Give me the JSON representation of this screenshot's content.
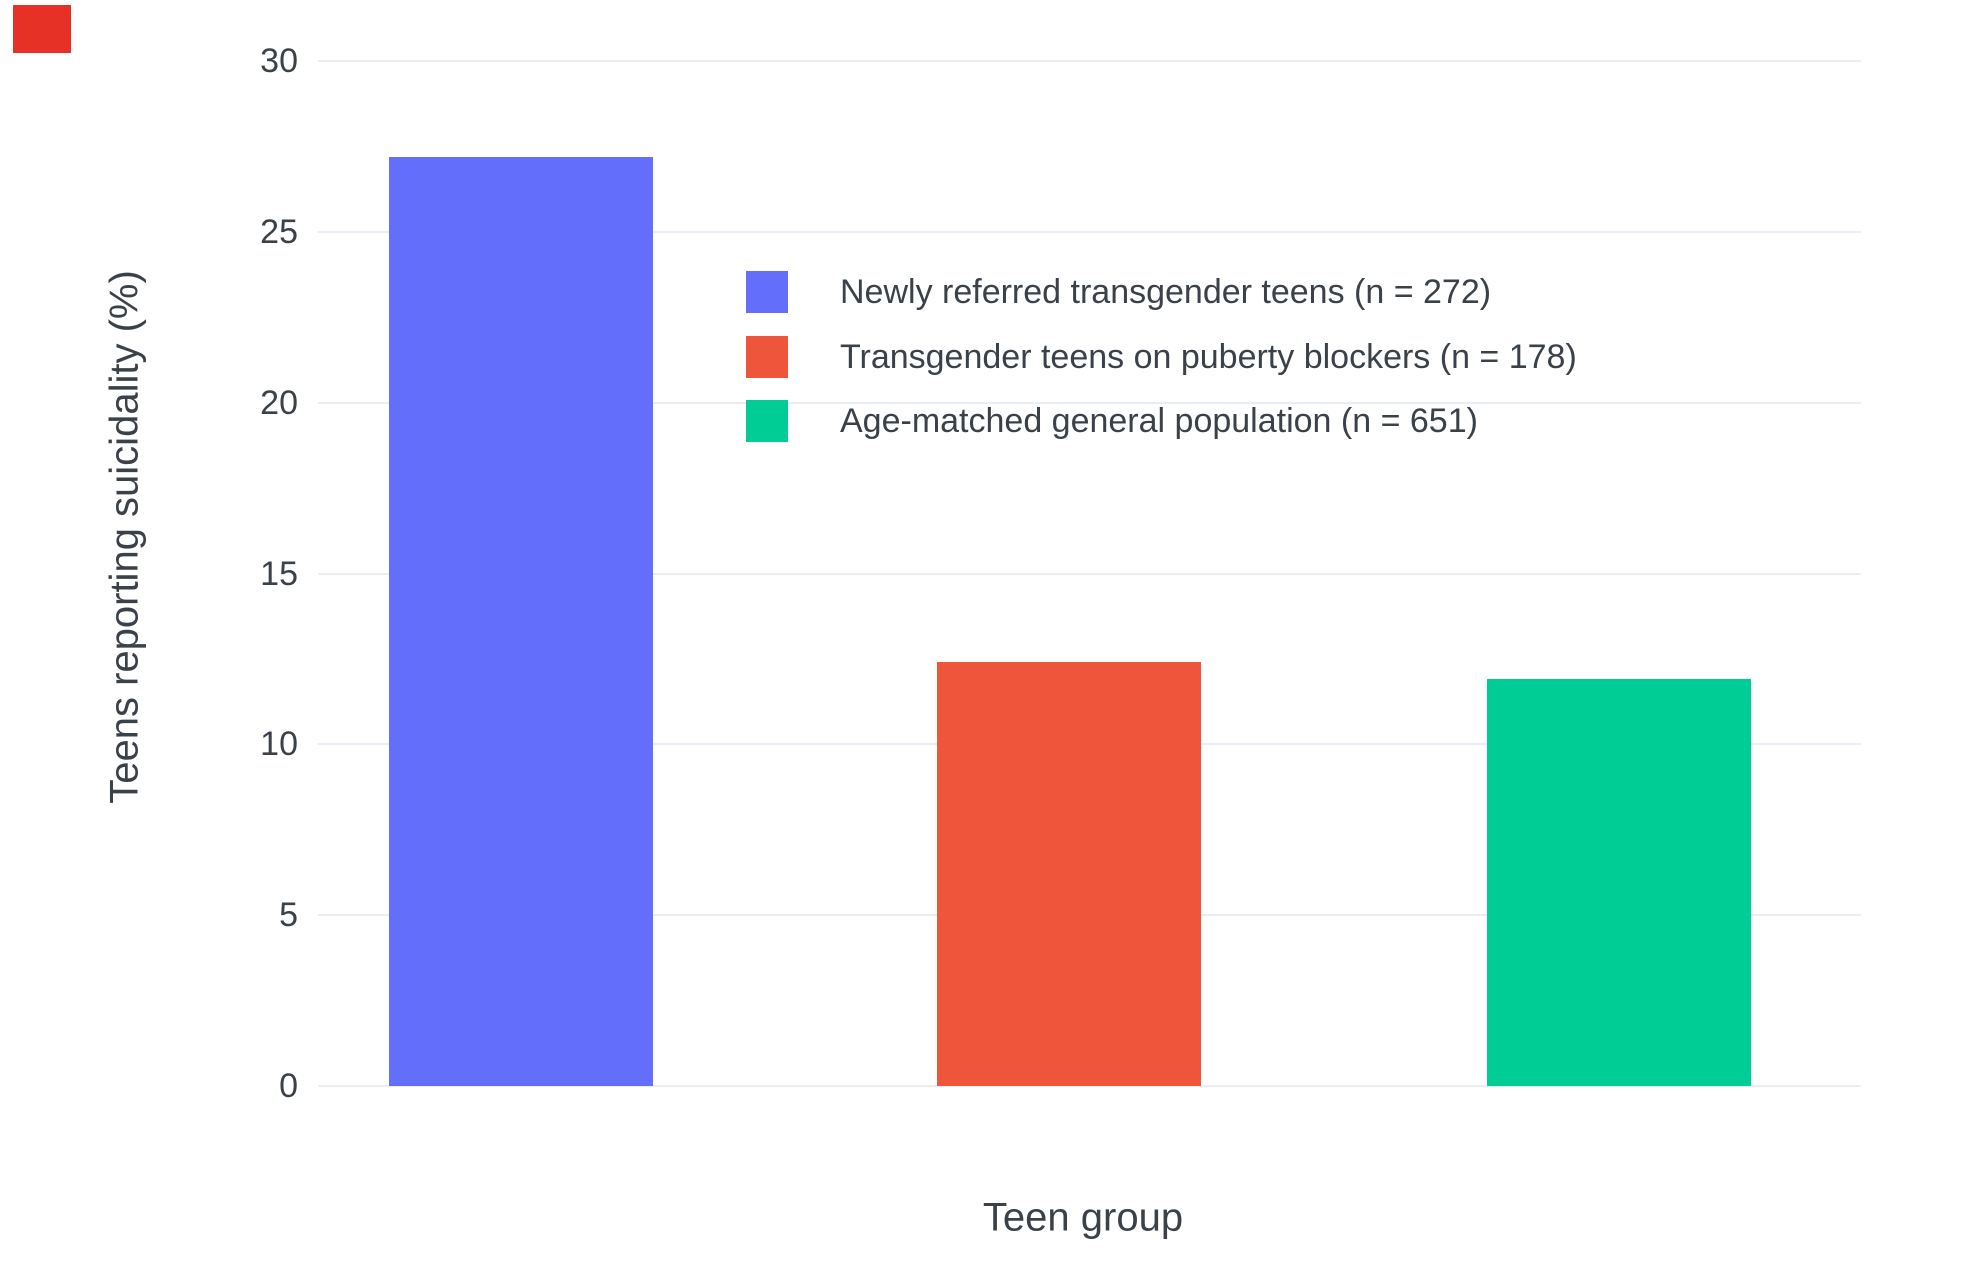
{
  "chart_data": {
    "type": "bar",
    "title": "",
    "xlabel": "Teen group",
    "ylabel": "Teens reporting suicidality (%)",
    "ylim": [
      0,
      30
    ],
    "yticks": [
      0,
      5,
      10,
      15,
      20,
      25,
      30
    ],
    "grid": true,
    "legend_position": "inside-top-right",
    "categories": [
      "Newly referred transgender teens",
      "Transgender teens on puberty blockers",
      "Age-matched general population"
    ],
    "series": [
      {
        "name": "Newly referred transgender teens (n = 272)",
        "value": 27.2,
        "color": "#636EFA"
      },
      {
        "name": "Transgender teens on puberty blockers (n = 178)",
        "value": 12.4,
        "color": "#EF553B"
      },
      {
        "name": "Age-matched general population (n = 651)",
        "value": 11.9,
        "color": "#00CC96"
      }
    ]
  },
  "decor": {
    "corner_marker_color": "#e63226"
  },
  "colors": {
    "background": "#ffffff",
    "grid": "#e9eef6",
    "text": "#3b4149"
  }
}
